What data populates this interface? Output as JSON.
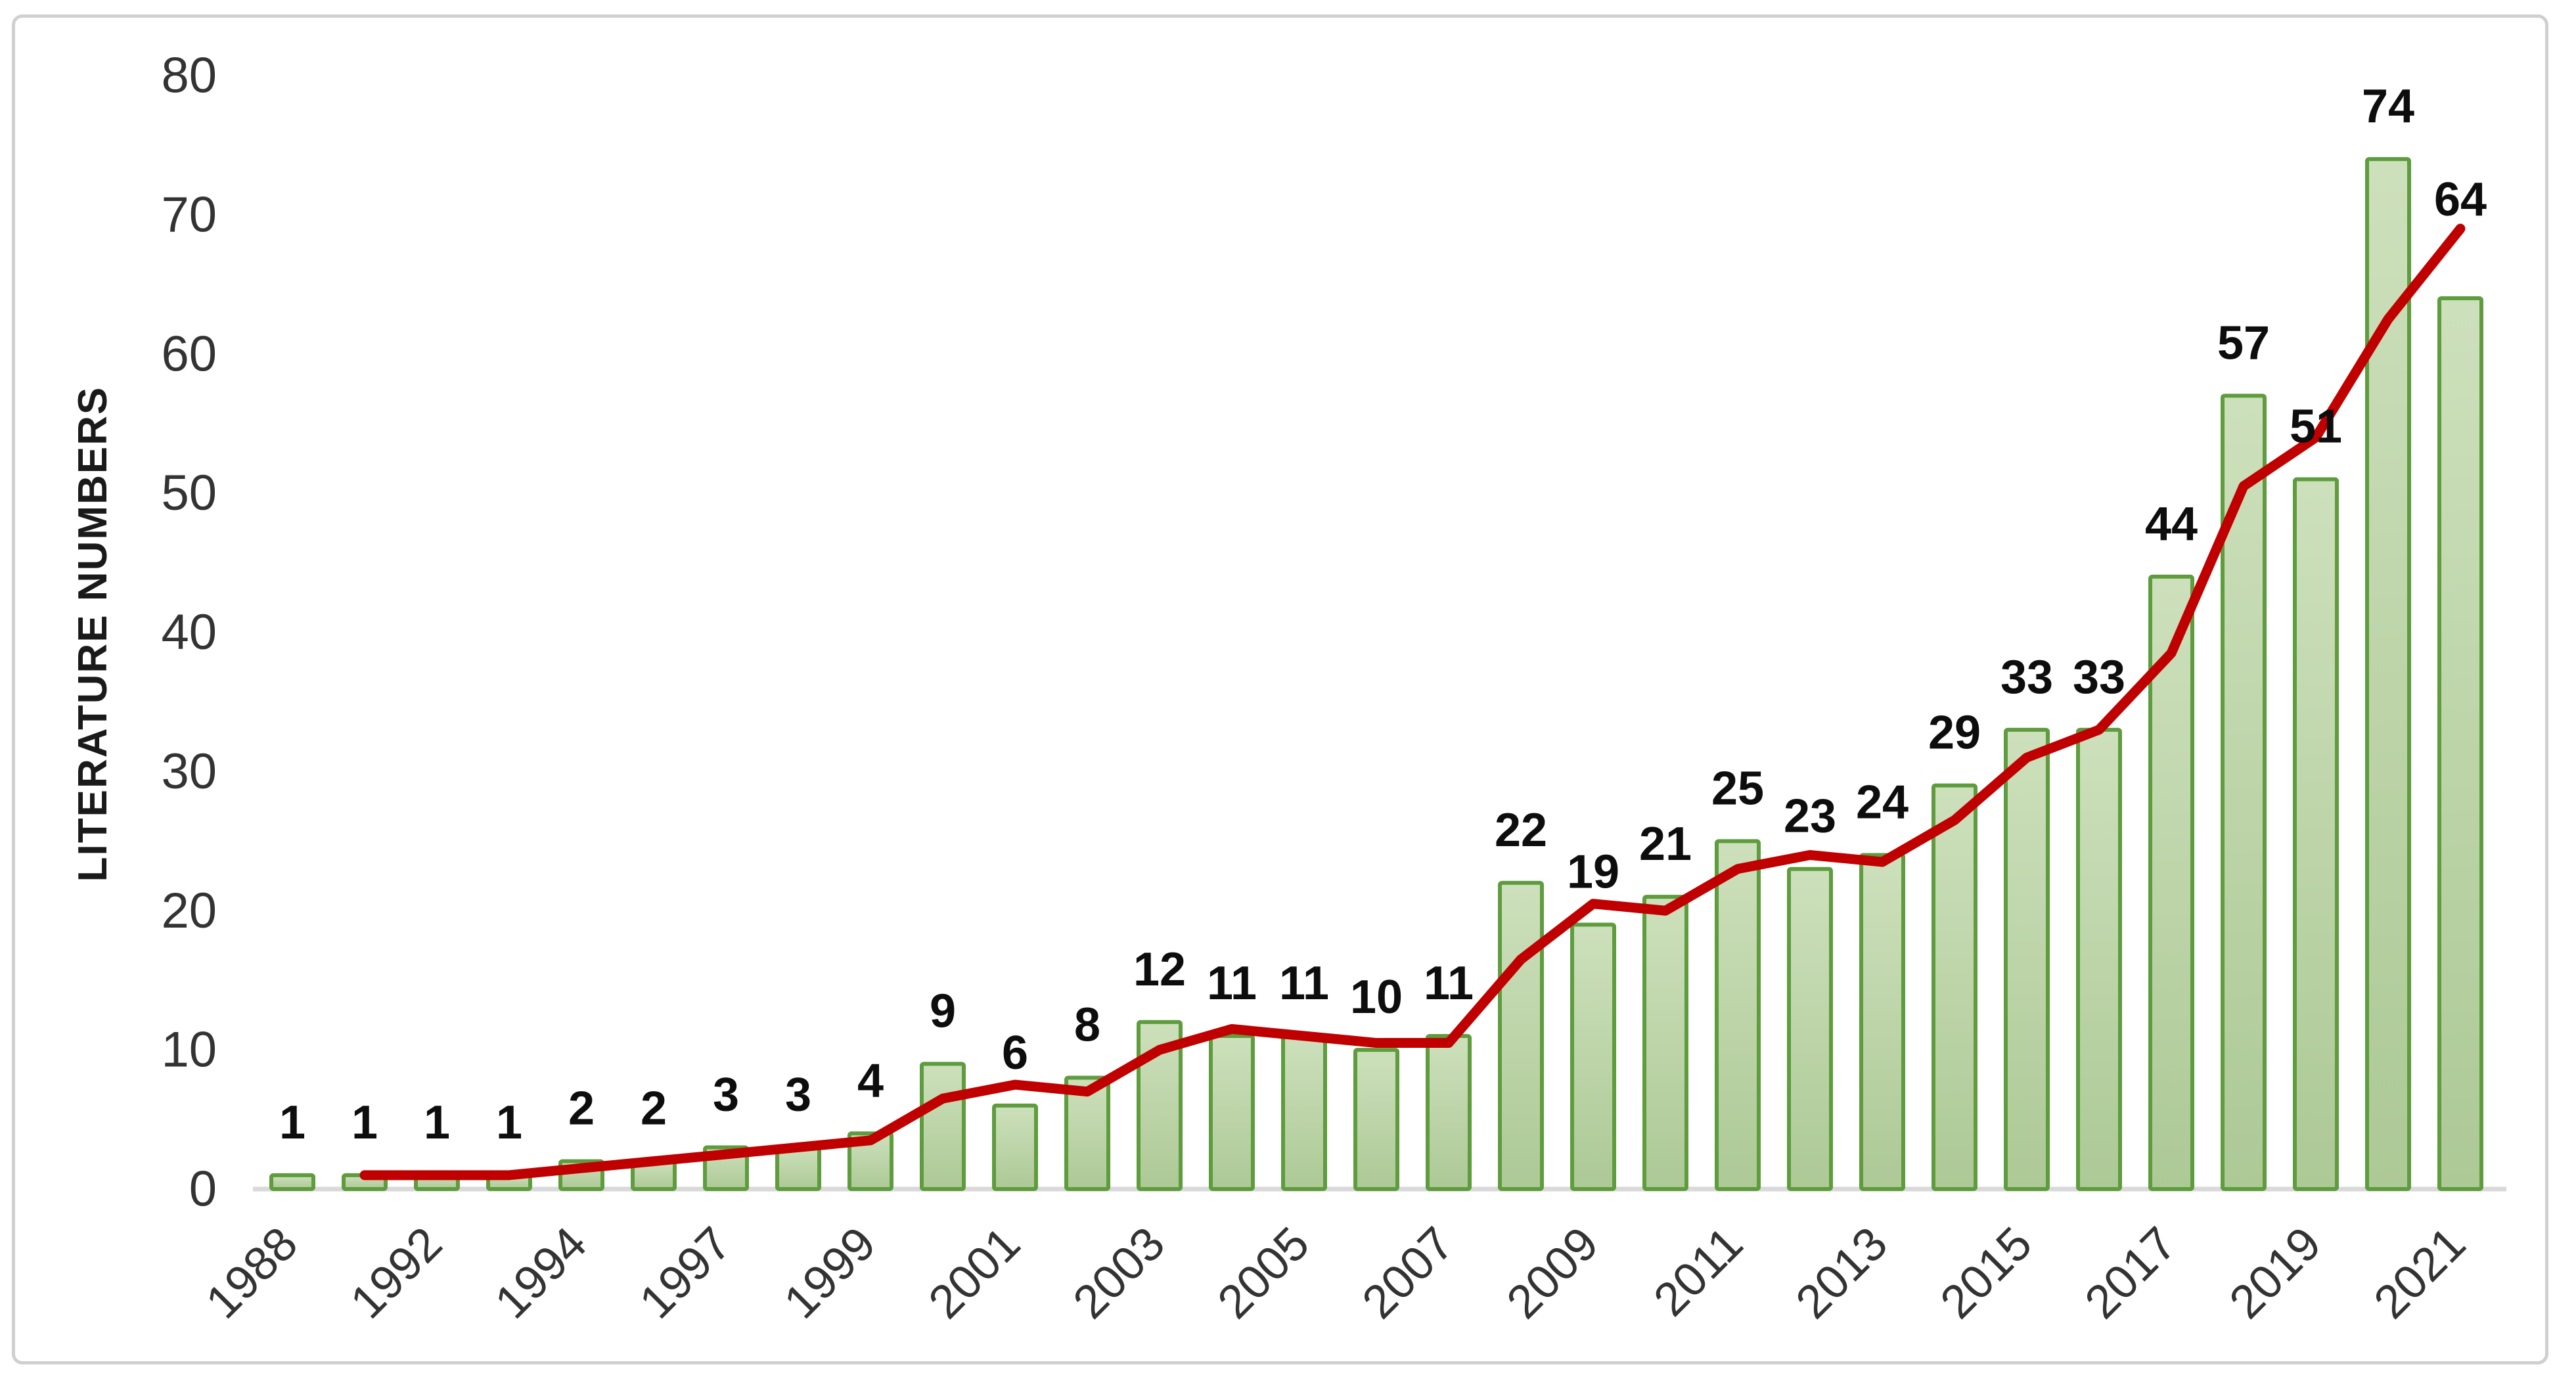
{
  "chart_data": {
    "type": "bar",
    "title": "",
    "xlabel": "",
    "ylabel": "LITERATURE NUMBERS",
    "ylim": [
      0,
      80
    ],
    "yticks": [
      "0",
      "10",
      "20",
      "30",
      "40",
      "50",
      "60",
      "70",
      "80"
    ],
    "grid": false,
    "legend_position": "none",
    "categories": [
      "1988",
      "",
      "1992",
      "",
      "1994",
      "",
      "1997",
      "",
      "1999",
      "",
      "2001",
      "",
      "2003",
      "",
      "2005",
      "",
      "2007",
      "",
      "2009",
      "",
      "2011",
      "",
      "2013",
      "",
      "2015",
      "",
      "2017",
      "",
      "2019",
      "",
      "2021"
    ],
    "series": [
      {
        "name": "literature-count-bars",
        "type": "bar",
        "values": [
          1,
          1,
          1,
          1,
          2,
          2,
          3,
          3,
          4,
          9,
          6,
          8,
          12,
          11,
          11,
          10,
          11,
          22,
          19,
          21,
          25,
          23,
          24,
          29,
          33,
          33,
          44,
          57,
          51,
          74,
          64
        ],
        "fill_top": "#cde0bc",
        "fill_bottom": "#adc996",
        "border": "#5e9c3e"
      },
      {
        "name": "trend-line-2-period-moving-average",
        "type": "line",
        "color": "#c00000",
        "values": [
          null,
          1,
          1,
          1,
          1.5,
          2,
          2.5,
          3,
          3.5,
          6.5,
          7.5,
          7,
          10,
          11.5,
          11,
          10.5,
          10.5,
          16.5,
          20.5,
          20,
          23,
          24,
          23.5,
          26.5,
          31,
          33,
          38.5,
          50.5,
          54,
          62.5,
          69
        ]
      }
    ],
    "data_labels": [
      "1",
      "1",
      "1",
      "1",
      "2",
      "2",
      "3",
      "3",
      "4",
      "9",
      "6",
      "8",
      "12",
      "11",
      "11",
      "10",
      "11",
      "22",
      "19",
      "21",
      "25",
      "23",
      "24",
      "29",
      "33",
      "33",
      "44",
      "57",
      "51",
      "74",
      "64"
    ],
    "colors": {
      "axis_line": "#d9d9d9",
      "tick_text": "#333333",
      "data_label_text": "#0d0d0d",
      "frame_border": "#d0d0d0",
      "background": "#ffffff"
    }
  }
}
